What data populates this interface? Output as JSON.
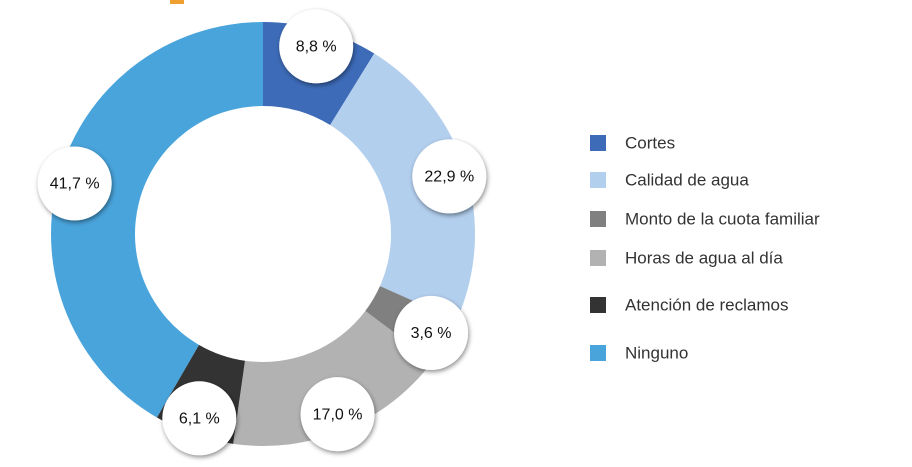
{
  "chart_data": {
    "type": "donut",
    "categories": [
      "Cortes",
      "Calidad de agua",
      "Monto de la cuota familiar",
      "Horas de agua al día",
      "Atención de reclamos",
      "Ninguno"
    ],
    "values": [
      8.8,
      22.9,
      3.6,
      17.0,
      6.1,
      41.7
    ],
    "value_labels": [
      "8,8 %",
      "22,9 %",
      "3,6 %",
      "17,0 %",
      "6,1 %",
      "41,7 %"
    ],
    "colors": [
      "#3d6bb8",
      "#b3cfee",
      "#808080",
      "#b2b2b2",
      "#333333",
      "#49a4dc"
    ],
    "legend": "right"
  }
}
